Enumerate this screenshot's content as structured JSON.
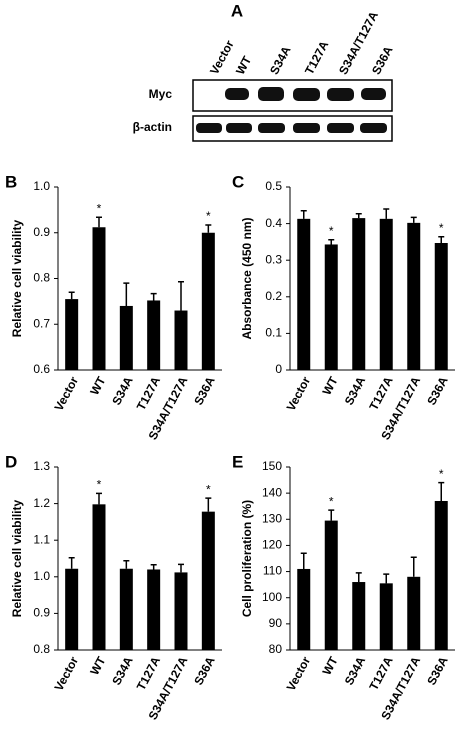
{
  "blot": {
    "panel": "A",
    "lanes": [
      "Vector",
      "WT",
      "S34A",
      "T127A",
      "S34A/T127A",
      "S36A"
    ],
    "rows": [
      "Myc",
      "β-actin"
    ]
  },
  "chart_data": [
    {
      "type": "bar",
      "panel": "B",
      "y_label": "Relative cell viability",
      "categories": [
        "Vector",
        "WT",
        "S34A",
        "T127A",
        "S34A/T127A",
        "S36A"
      ],
      "values": [
        0.755,
        0.912,
        0.74,
        0.752,
        0.73,
        0.9
      ],
      "errors": [
        0.015,
        0.022,
        0.05,
        0.015,
        0.063,
        0.017
      ],
      "significance": [
        null,
        "*",
        null,
        null,
        null,
        "*"
      ],
      "color": "#000000",
      "ylim": [
        0.6,
        1.0
      ],
      "yticks": [
        0.6,
        0.7,
        0.8,
        0.9,
        {
          "value": 1.0,
          "label": "1.0"
        }
      ]
    },
    {
      "type": "bar",
      "panel": "C",
      "y_label": "Absorbance (450 nm)",
      "categories": [
        "Vector",
        "WT",
        "S34A",
        "T127A",
        "S34A/T127A",
        "S36A"
      ],
      "values": [
        0.413,
        0.343,
        0.415,
        0.413,
        0.402,
        0.347
      ],
      "errors": [
        0.022,
        0.013,
        0.012,
        0.027,
        0.015,
        0.017
      ],
      "significance": [
        null,
        "*",
        null,
        null,
        null,
        "*"
      ],
      "color": "#000000",
      "ylim": [
        0,
        0.5
      ],
      "yticks": [
        0,
        0.1,
        0.2,
        0.3,
        0.4,
        0.5
      ]
    },
    {
      "type": "bar",
      "panel": "D",
      "y_label": "Relative cell viability",
      "categories": [
        "Vector",
        "WT",
        "S34A",
        "T127A",
        "S34A/T127A",
        "S36A"
      ],
      "values": [
        1.022,
        1.198,
        1.022,
        1.02,
        1.012,
        1.178
      ],
      "errors": [
        0.03,
        0.03,
        0.022,
        0.013,
        0.022,
        0.037
      ],
      "significance": [
        null,
        "*",
        null,
        null,
        null,
        "*"
      ],
      "color": "#000000",
      "ylim": [
        0.8,
        1.3
      ],
      "yticks": [
        0.8,
        0.9,
        {
          "value": 1.0,
          "label": "1.0"
        },
        1.1,
        1.2,
        1.3
      ]
    },
    {
      "type": "bar",
      "panel": "E",
      "y_label": "Cell proliferation (%)",
      "categories": [
        "Vector",
        "WT",
        "S34A",
        "T127A",
        "S34A/T127A",
        "S36A"
      ],
      "values": [
        111,
        129.5,
        106,
        105.5,
        108,
        137
      ],
      "errors": [
        6,
        4,
        3.5,
        3.5,
        7.5,
        7
      ],
      "significance": [
        null,
        "*",
        null,
        null,
        null,
        "*"
      ],
      "color": "#000000",
      "ylim": [
        80,
        150
      ],
      "yticks": [
        80,
        90,
        100,
        110,
        120,
        130,
        140,
        150
      ]
    }
  ]
}
